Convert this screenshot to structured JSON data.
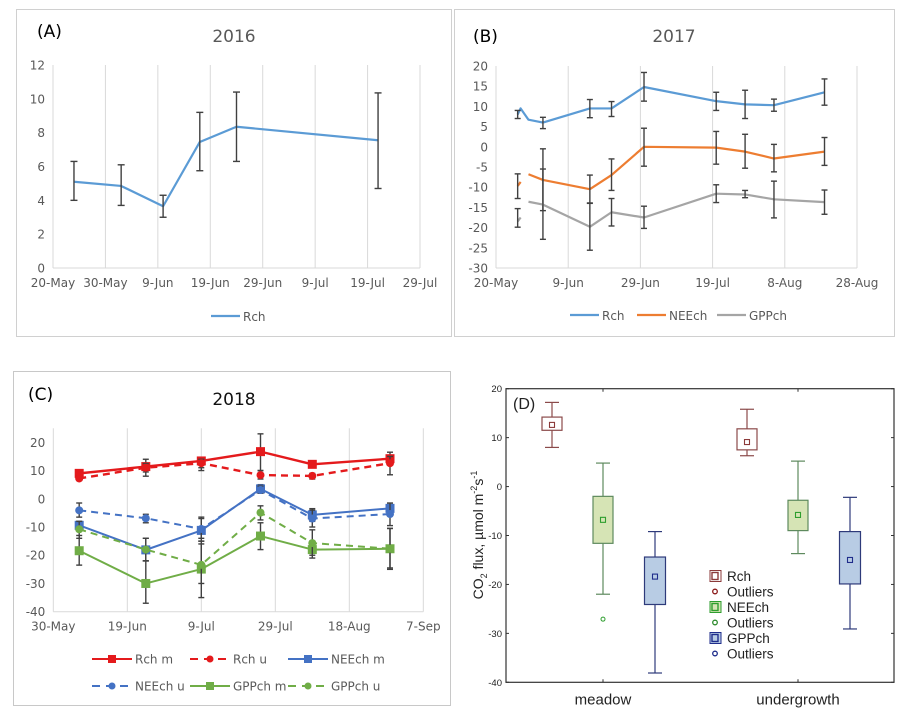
{
  "chart_data": [
    {
      "id": "A",
      "type": "line",
      "panel_label": "(A)",
      "title": "2016",
      "xlabel": "",
      "ylabel": "",
      "xlim_dates": [
        "20-May",
        "29-Jul"
      ],
      "xlim_day_offsets": [
        0,
        70
      ],
      "x_tick_labels": [
        "20-May",
        "30-May",
        "9-Jun",
        "19-Jun",
        "29-Jun",
        "9-Jul",
        "19-Jul",
        "29-Jul"
      ],
      "x_tick_day_offsets": [
        0,
        10,
        20,
        30,
        40,
        50,
        60,
        70
      ],
      "ylim": [
        0,
        12
      ],
      "y_ticks": [
        0,
        2,
        4,
        6,
        8,
        10,
        12
      ],
      "grid": "vertical",
      "legend_position": "bottom",
      "series": [
        {
          "name": "Rch",
          "color": "#5B9BD5",
          "x_day_offsets": [
            4,
            13,
            21,
            28,
            35,
            62
          ],
          "values": [
            5.1,
            4.85,
            3.65,
            7.45,
            8.35,
            7.55
          ],
          "err_low": [
            4.0,
            3.7,
            3.0,
            5.75,
            6.3,
            4.7
          ],
          "err_high": [
            6.3,
            6.1,
            4.3,
            9.2,
            10.4,
            10.35
          ]
        }
      ]
    },
    {
      "id": "B",
      "type": "line",
      "panel_label": "(B)",
      "title": "2017",
      "xlabel": "",
      "ylabel": "",
      "xlim_dates": [
        "20-May",
        "28-Aug"
      ],
      "xlim_day_offsets": [
        0,
        100
      ],
      "x_tick_labels": [
        "20-May",
        "9-Jun",
        "29-Jun",
        "19-Jul",
        "8-Aug",
        "28-Aug"
      ],
      "x_tick_day_offsets": [
        0,
        20,
        40,
        60,
        80,
        100
      ],
      "ylim": [
        -30,
        20
      ],
      "y_ticks": [
        -30,
        -25,
        -20,
        -15,
        -10,
        -5,
        0,
        5,
        10,
        15,
        20
      ],
      "grid": "vertical",
      "legend_position": "bottom",
      "series": [
        {
          "name": "Rch",
          "color": "#5B9BD5",
          "x_day_offsets": [
            6,
            6.8,
            9,
            13,
            26,
            32,
            41,
            61,
            69,
            77,
            91
          ],
          "values": [
            8.0,
            9.5,
            6.7,
            6.0,
            9.5,
            9.5,
            14.8,
            11.3,
            10.5,
            10.3,
            13.5
          ],
          "err_low": [
            7.0,
            null,
            null,
            4.5,
            7.2,
            7.5,
            11.3,
            9.0,
            7.0,
            8.8,
            10.3
          ],
          "err_high": [
            9.0,
            null,
            null,
            7.3,
            11.7,
            11.2,
            18.4,
            13.5,
            14.0,
            11.8,
            16.8
          ]
        },
        {
          "name": "NEEch",
          "color": "#ED7D31",
          "x_day_offsets": [
            6,
            9,
            13,
            26,
            32,
            41,
            61,
            69,
            77,
            91
          ],
          "values": [
            -9.2,
            -6.8,
            -8.2,
            -10.5,
            -7.0,
            0.0,
            -0.2,
            -1.2,
            -2.9,
            -1.2
          ],
          "err_low": [
            -12.8,
            null,
            -15.8,
            -14.0,
            -10.8,
            -4.8,
            -4.3,
            -5.3,
            -6.2,
            -4.6
          ],
          "err_high": [
            -6.7,
            null,
            -0.5,
            -7.0,
            -3.0,
            4.6,
            3.8,
            3.1,
            0.6,
            2.3
          ],
          "segment_breaks_after_index": [
            0
          ]
        },
        {
          "name": "GPPch",
          "color": "#A5A5A5",
          "x_day_offsets": [
            6,
            9,
            13,
            26,
            32,
            41,
            61,
            69,
            77,
            91
          ],
          "values": [
            -18.0,
            -13.6,
            -14.3,
            -19.8,
            -16.2,
            -17.5,
            -11.6,
            -11.8,
            -13.0,
            -13.7
          ],
          "err_low": [
            -19.9,
            null,
            -22.9,
            -25.6,
            -19.6,
            -20.2,
            -13.8,
            -12.6,
            -17.6,
            -16.7
          ],
          "err_high": [
            -15.3,
            null,
            -5.5,
            -13.9,
            -12.8,
            -14.7,
            -9.4,
            -10.8,
            -8.5,
            -10.7
          ],
          "segment_breaks_after_index": [
            0
          ]
        }
      ]
    },
    {
      "id": "C",
      "type": "line",
      "panel_label": "(C)",
      "title": "2018",
      "xlabel": "",
      "ylabel": "",
      "xlim_dates": [
        "30-May",
        "7-Sep"
      ],
      "xlim_day_offsets": [
        0,
        100
      ],
      "x_tick_labels": [
        "30-May",
        "19-Jun",
        "9-Jul",
        "29-Jul",
        "18-Aug",
        "7-Sep"
      ],
      "x_tick_day_offsets": [
        0,
        20,
        40,
        60,
        80,
        100
      ],
      "ylim": [
        -40,
        25
      ],
      "y_ticks": [
        -40,
        -30,
        -20,
        -10,
        0,
        10,
        20
      ],
      "grid": "vertical",
      "legend_position": "bottom",
      "x_day_offsets": [
        7,
        25,
        40,
        56,
        70,
        91
      ],
      "series": [
        {
          "name": "Rch m",
          "color": "#E41A1C",
          "dashed": false,
          "marker": "square",
          "values": [
            9.0,
            11.4,
            13.4,
            16.7,
            12.2,
            14.2
          ],
          "err_low": [
            8.0,
            8.0,
            10.0,
            10.0,
            11.0,
            12.0
          ],
          "err_high": [
            10.0,
            14.0,
            14.5,
            23.0,
            13.0,
            16.5
          ]
        },
        {
          "name": "Rch u",
          "color": "#E41A1C",
          "dashed": true,
          "marker": "circle",
          "values": [
            7.2,
            11.0,
            12.6,
            8.4,
            8.1,
            12.6
          ],
          "err_low": [
            6.5,
            9.5,
            11.0,
            7.0,
            7.0,
            8.5
          ],
          "err_high": [
            8.0,
            12.5,
            14.0,
            10.0,
            9.0,
            15.0
          ]
        },
        {
          "name": "NEEch m",
          "color": "#4472C4",
          "dashed": false,
          "marker": "square",
          "values": [
            -9.4,
            -18.1,
            -11.2,
            3.5,
            -5.7,
            -3.4
          ],
          "err_low": [
            -11.0,
            -22.0,
            -15.0,
            2.0,
            -8.0,
            -5.0
          ],
          "err_high": [
            -8.0,
            -14.0,
            -6.5,
            5.0,
            -3.5,
            -2.0
          ]
        },
        {
          "name": "NEEch u",
          "color": "#4472C4",
          "dashed": true,
          "marker": "circle",
          "values": [
            -4.1,
            -6.9,
            -10.7,
            3.1,
            -7.0,
            -5.4
          ],
          "err_low": [
            -6.5,
            -8.5,
            -14.0,
            2.0,
            -10.0,
            -9.5
          ],
          "err_high": [
            -1.5,
            -5.5,
            -7.0,
            4.5,
            -4.0,
            -1.5
          ]
        },
        {
          "name": "GPPch m",
          "color": "#70AD47",
          "dashed": false,
          "marker": "square",
          "values": [
            -18.4,
            -30.0,
            -24.9,
            -13.2,
            -18.0,
            -17.7
          ],
          "err_low": [
            -23.5,
            -37.0,
            -35.0,
            -18.0,
            -21.0,
            -25.0
          ],
          "err_high": [
            -13.0,
            -22.0,
            -16.0,
            -8.5,
            -15.0,
            -10.5
          ]
        },
        {
          "name": "GPPch u",
          "color": "#70AD47",
          "dashed": true,
          "marker": "circle",
          "values": [
            -10.8,
            -18.0,
            -23.4,
            -4.9,
            -15.7,
            -17.7
          ],
          "err_low": [
            -14.0,
            -22.0,
            -30.0,
            -7.5,
            -20.0,
            -24.5
          ],
          "err_high": [
            -8.0,
            -14.0,
            -15.0,
            -2.5,
            -11.0,
            -10.5
          ]
        }
      ]
    },
    {
      "id": "D",
      "type": "box",
      "panel_label": "(D)",
      "title": "",
      "xlabel": "",
      "ylabel": "CO2 flux, µmol m-2s-1",
      "ylabel_parts": {
        "pre": "CO",
        "sub": "2",
        "mid": " flux,  µmol m",
        "sup1": "-2",
        "s": "s",
        "sup2": "-1"
      },
      "ylim": [
        -40,
        20
      ],
      "y_ticks": [
        -40,
        -30,
        -20,
        -10,
        0,
        10,
        20
      ],
      "categories": [
        "meadow",
        "undergrowth"
      ],
      "legend_position": "center",
      "legend": [
        {
          "label": "Rch",
          "kind": "box",
          "color": "#8B3A3A",
          "fill": "#ffffff"
        },
        {
          "label": "Outliers",
          "kind": "outlier",
          "color": "#8B1A1A"
        },
        {
          "label": "NEEch",
          "kind": "box",
          "color": "#2E9E2E",
          "fill": "#D6E4B5"
        },
        {
          "label": "Outliers",
          "kind": "outlier",
          "color": "#2E8B2E"
        },
        {
          "label": "GPPch",
          "kind": "box",
          "color": "#1F2D8B",
          "fill": "#B8CCE4"
        },
        {
          "label": "Outliers",
          "kind": "outlier",
          "color": "#1F2D8B"
        }
      ],
      "series": [
        {
          "name": "Rch",
          "edge": "#8B4A4A",
          "fill": "#ffffff",
          "mean_color": "#8B3A3A",
          "stats": [
            {
              "category": "meadow",
              "whisker_high": 17.2,
              "box_high": 14.2,
              "mean": 12.6,
              "box_low": 11.5,
              "whisker_low": 8.0,
              "outliers": []
            },
            {
              "category": "undergrowth",
              "whisker_high": 15.8,
              "box_high": 11.8,
              "mean": 9.1,
              "box_low": 7.5,
              "whisker_low": 6.3,
              "outliers": []
            }
          ]
        },
        {
          "name": "NEEch",
          "edge": "#5E8A5E",
          "fill": "#D6E4B5",
          "mean_color": "#2E9E2E",
          "stats": [
            {
              "category": "meadow",
              "whisker_high": 4.8,
              "box_high": -2.0,
              "mean": -6.8,
              "box_low": -11.6,
              "whisker_low": -22.0,
              "outliers": [
                -27.1
              ]
            },
            {
              "category": "undergrowth",
              "whisker_high": 5.2,
              "box_high": -2.8,
              "mean": -5.8,
              "box_low": -9.0,
              "whisker_low": -13.7,
              "outliers": []
            }
          ]
        },
        {
          "name": "GPPch",
          "edge": "#2E3A7A",
          "fill": "#B8CCE4",
          "mean_color": "#1F2D8B",
          "stats": [
            {
              "category": "meadow",
              "whisker_high": -9.2,
              "box_high": -14.4,
              "mean": -18.4,
              "box_low": -24.1,
              "whisker_low": -38.1,
              "outliers": []
            },
            {
              "category": "undergrowth",
              "whisker_high": -2.2,
              "box_high": -9.2,
              "mean": -15.0,
              "box_low": -19.9,
              "whisker_low": -29.1,
              "outliers": []
            }
          ]
        }
      ]
    }
  ]
}
